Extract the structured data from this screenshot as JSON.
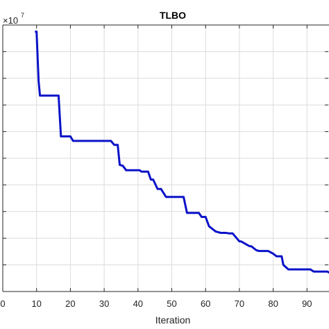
{
  "chart_data": {
    "type": "line",
    "title": "TLBO",
    "xlabel": "Iteration",
    "ylabel": "",
    "y_exponent_base": "×10",
    "y_exponent_power": "7",
    "xlim": [
      0,
      100
    ],
    "ylim": [
      0,
      10
    ],
    "x_ticks": [
      0,
      10,
      20,
      30,
      40,
      50,
      60,
      70,
      80,
      90
    ],
    "x_tick_labels": [
      "0",
      "10",
      "20",
      "30",
      "40",
      "50",
      "60",
      "70",
      "80",
      "90"
    ],
    "y_ticks": [
      1,
      2,
      3,
      4,
      5,
      6,
      7,
      8,
      9
    ],
    "grid": true,
    "series": [
      {
        "color": "#0a12c8",
        "x": [
          9.5,
          10,
          10.6,
          11,
          16.5,
          17.2,
          20,
          20.8,
          32,
          33,
          34,
          34.6,
          35.5,
          36.5,
          40.5,
          41,
          43,
          43.8,
          44.5,
          45.8,
          46.8,
          48.3,
          53.5,
          54.5,
          58,
          58.8,
          60,
          61,
          63,
          64.5,
          66,
          67,
          68,
          70,
          70.5,
          73,
          73.5,
          75,
          75.8,
          78.5,
          80,
          81,
          82.5,
          83,
          84.5,
          91,
          92,
          96,
          97,
          100
        ],
        "y": [
          9.75,
          9.75,
          7.9,
          7.35,
          7.35,
          5.82,
          5.82,
          5.65,
          5.65,
          5.5,
          5.5,
          4.75,
          4.72,
          4.55,
          4.55,
          4.5,
          4.5,
          4.2,
          4.2,
          3.85,
          3.85,
          3.55,
          3.55,
          2.95,
          2.95,
          2.8,
          2.8,
          2.45,
          2.25,
          2.2,
          2.2,
          2.18,
          2.18,
          1.88,
          1.88,
          1.7,
          1.7,
          1.55,
          1.52,
          1.52,
          1.42,
          1.32,
          1.32,
          1.0,
          0.83,
          0.83,
          0.75,
          0.75,
          0.68,
          0.68
        ]
      }
    ]
  }
}
